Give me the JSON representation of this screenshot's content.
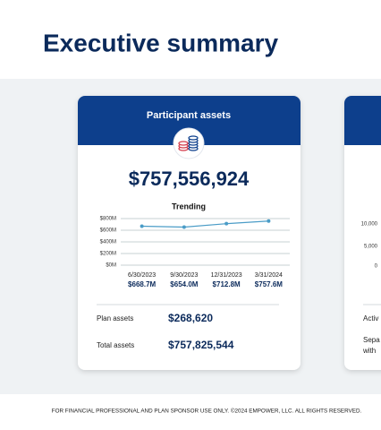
{
  "header": {
    "title": "Executive summary"
  },
  "card": {
    "title": "Participant assets",
    "total": "$757,556,924",
    "rows": [
      {
        "label": "Plan assets",
        "value": "$268,620"
      },
      {
        "label": "Total assets",
        "value": "$757,825,544"
      }
    ]
  },
  "chart_data": {
    "type": "line",
    "title": "Trending",
    "categories": [
      "6/30/2023",
      "9/30/2023",
      "12/31/2023",
      "3/31/2024"
    ],
    "values": [
      668.7,
      654.0,
      712.8,
      757.6
    ],
    "value_labels": [
      "$668.7M",
      "$654.0M",
      "$712.8M",
      "$757.6M"
    ],
    "color": "#4a9cc7",
    "ylim": [
      0,
      800
    ],
    "yticks": [
      {
        "value": 0,
        "label": "$0M"
      },
      {
        "value": 200,
        "label": "$200M"
      },
      {
        "value": 400,
        "label": "$400M"
      },
      {
        "value": 600,
        "label": "$600M"
      },
      {
        "value": 800,
        "label": "$800M"
      }
    ],
    "grid": true
  },
  "partial_card": {
    "axis_labels": [
      "10,000",
      "5,000",
      "0"
    ],
    "lines": [
      "Activ",
      "Sepa",
      "with"
    ]
  },
  "footer": {
    "text": "FOR FINANCIAL PROFESSIONAL AND PLAN SPONSOR USE ONLY. ©2024 EMPOWER, LLC. ALL RIGHTS RESERVED."
  }
}
